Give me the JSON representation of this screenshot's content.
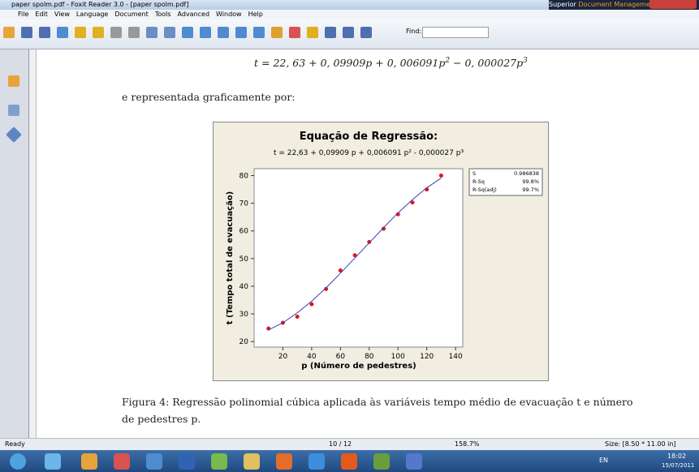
{
  "window": {
    "title": "paper spolm.pdf - Foxit Reader 3.0 - [paper spolm.pdf]",
    "ad": [
      "Superior ",
      "Document ",
      "Management"
    ]
  },
  "menu": [
    "File",
    "Edit",
    "View",
    "Language",
    "Document",
    "Tools",
    "Advanced",
    "Window",
    "Help"
  ],
  "toolbar": {
    "find_label": "Find:"
  },
  "document": {
    "equation": [
      "t = 22, 63 + 0, 09909p + 0, 006091p",
      "2",
      " − 0, 000027p",
      "3"
    ],
    "intro": "e representada graficamente por:",
    "caption": [
      "Figura 4: Regressão polinomial cúbica aplicada às variáveis tempo médio de evacuação t e número",
      "de pedestres p."
    ]
  },
  "chart_data": {
    "type": "scatter",
    "title": "Equação de Regressão:",
    "subtitle": "t  =  22,63 + 0,09909 p + 0,006091 p² - 0,000027 p³",
    "x_label": "p (Número de pedestres)",
    "y_label": "t (Tempo total de evacuação)",
    "x": [
      10,
      20,
      30,
      40,
      50,
      60,
      70,
      80,
      90,
      100,
      110,
      120,
      130
    ],
    "series": [
      {
        "color": "#e0141e",
        "values": [
          24.7,
          26.8,
          29.0,
          33.5,
          39.0,
          45.7,
          51.2,
          56.0,
          60.8,
          66.0,
          70.3,
          75.0,
          80.0
        ]
      },
      {
        "color": "#3b3fb0",
        "line": true,
        "values": [
          24.2,
          26.8,
          30.4,
          34.6,
          39.4,
          44.7,
          50.2,
          55.7,
          61.2,
          66.5,
          71.3,
          75.6,
          79.1
        ]
      }
    ],
    "xlim": [
      0,
      145
    ],
    "xticks": [
      20,
      40,
      60,
      80,
      100,
      120,
      140
    ],
    "ylim": [
      18,
      82.5
    ],
    "yticks": [
      20,
      30,
      40,
      50,
      60,
      70,
      80
    ],
    "stats": [
      {
        "label": "S",
        "value": "0.986838"
      },
      {
        "label": "R-Sq",
        "value": "99.8%"
      },
      {
        "label": "R-Sq(adj)",
        "value": "99.7%"
      }
    ]
  },
  "status": {
    "ready": "Ready",
    "page": "10 / 12",
    "zoom": "158.7%",
    "size": "Size: [8.50 * 11.00 in]"
  },
  "taskbar": {
    "lang": "EN",
    "time": "18:02",
    "date": "15/07/2011"
  }
}
